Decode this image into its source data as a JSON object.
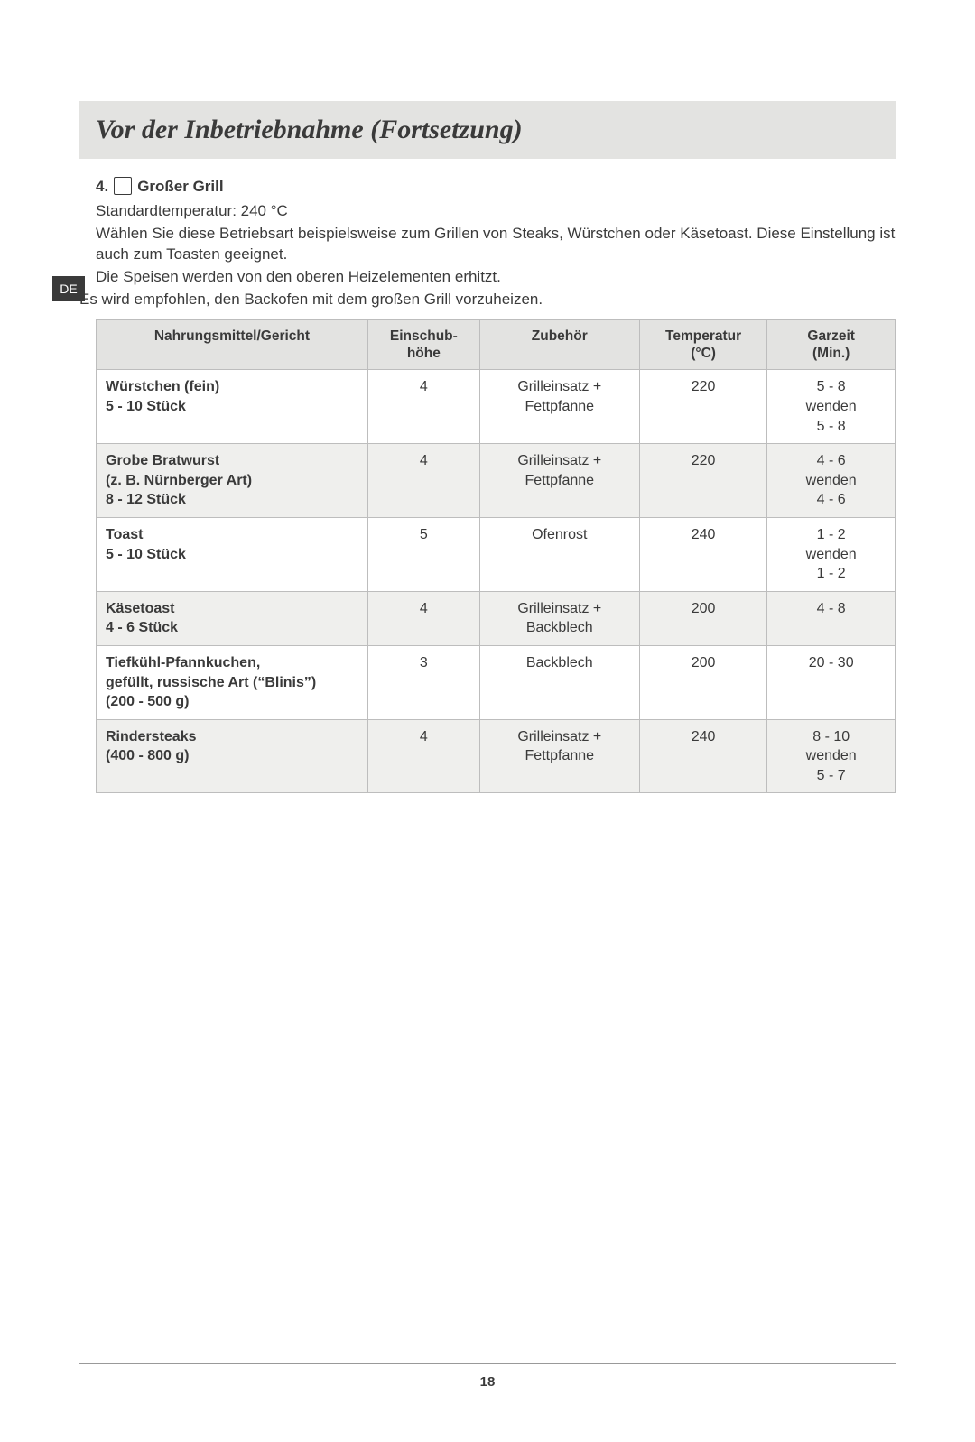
{
  "lang_tab": "DE",
  "page_title": "Vor der Inbetriebnahme (Fortsetzung)",
  "section": {
    "number": "4.",
    "heading": "Großer Grill",
    "paragraphs": [
      "Standardtemperatur: 240 °C",
      "Wählen Sie diese Betriebsart beispielsweise zum Grillen von Steaks, Würstchen oder Käsetoast. Diese Einstellung ist auch zum Toasten geeignet.",
      "Die Speisen werden von den oberen Heizelementen erhitzt."
    ],
    "outdented": "Es wird empfohlen, den Backofen mit dem großen Grill vorzuheizen."
  },
  "table": {
    "headers": [
      "Nahrungsmittel/Gericht",
      "Einschub-\nhöhe",
      "Zubehör",
      "Temperatur\n(°C)",
      "Garzeit\n(Min.)"
    ],
    "col_widths": [
      "34%",
      "14%",
      "20%",
      "16%",
      "16%"
    ],
    "header_bg": "#e3e3e1",
    "border_color": "#bdbdbd",
    "alt_row_bg": "#efefed",
    "rows": [
      {
        "alt": false,
        "cells": [
          "Würstchen (fein)\n5 - 10 Stück",
          "4",
          "Grilleinsatz +\nFettpfanne",
          "220",
          "5 - 8\nwenden\n5 - 8"
        ]
      },
      {
        "alt": true,
        "cells": [
          "Grobe Bratwurst\n(z. B. Nürnberger Art)\n8 - 12 Stück",
          "4",
          "Grilleinsatz +\nFettpfanne",
          "220",
          "4 - 6\nwenden\n4 - 6"
        ]
      },
      {
        "alt": false,
        "cells": [
          "Toast\n5 - 10 Stück",
          "5",
          "Ofenrost",
          "240",
          "1 - 2\nwenden\n1 - 2"
        ]
      },
      {
        "alt": true,
        "cells": [
          "Käsetoast\n4 - 6 Stück",
          "4",
          "Grilleinsatz +\nBackblech",
          "200",
          "4 - 8"
        ]
      },
      {
        "alt": false,
        "cells": [
          "Tiefkühl-Pfannkuchen,\ngefüllt, russische Art (“Blinis”)\n(200 - 500 g)",
          "3",
          "Backblech",
          "200",
          "20 - 30"
        ]
      },
      {
        "alt": true,
        "cells": [
          "Rindersteaks\n(400 - 800 g)",
          "4",
          "Grilleinsatz +\nFettpfanne",
          "240",
          "8 - 10\nwenden\n5 - 7"
        ]
      }
    ]
  },
  "page_number": "18"
}
